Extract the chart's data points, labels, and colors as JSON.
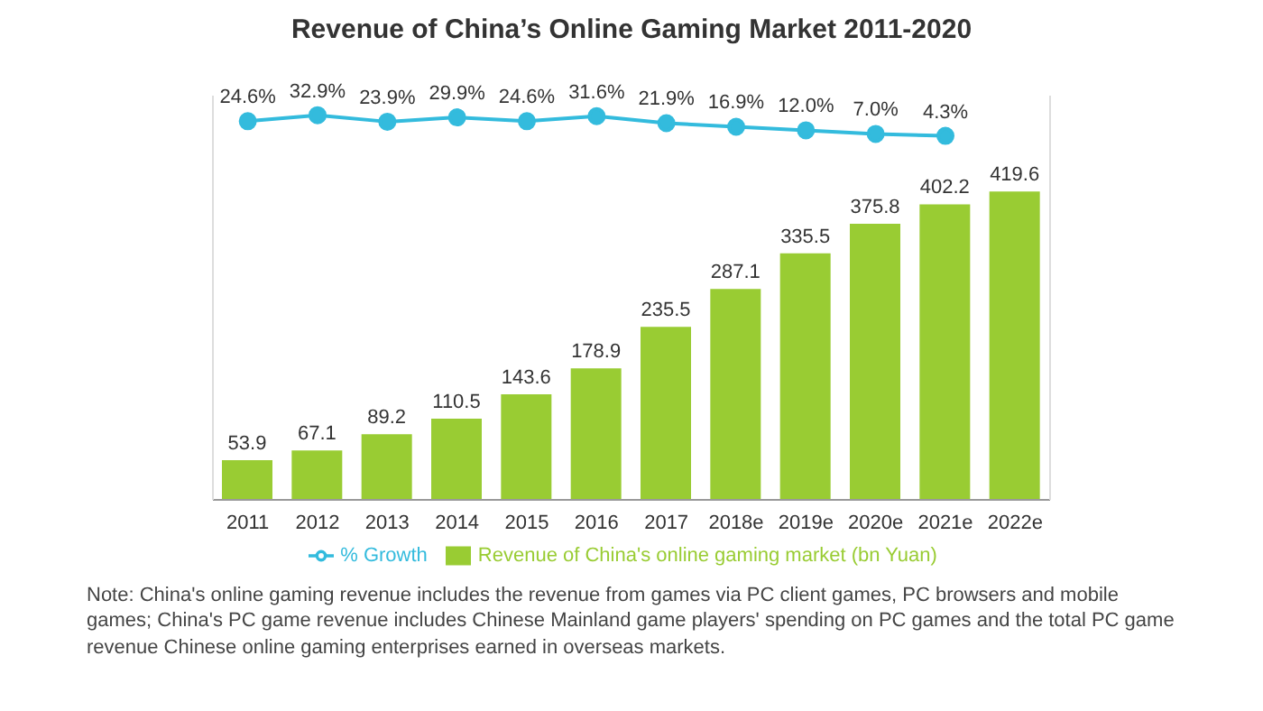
{
  "chart_data": {
    "type": "bar",
    "title": "Revenue of China’s Online Gaming Market 2011-2020",
    "categories": [
      "2011",
      "2012",
      "2013",
      "2014",
      "2015",
      "2016",
      "2017",
      "2018e",
      "2019e",
      "2020e",
      "2021e",
      "2022e"
    ],
    "series": [
      {
        "name": "Revenue of China's online gaming market (bn Yuan)",
        "color": "#99cc33",
        "values": [
          53.9,
          67.1,
          89.2,
          110.5,
          143.6,
          178.9,
          235.5,
          287.1,
          335.5,
          375.8,
          402.2,
          419.6
        ],
        "value_labels": [
          "53.9",
          "67.1",
          "89.2",
          "110.5",
          "143.6",
          "178.9",
          "235.5",
          "287.1",
          "335.5",
          "375.8",
          "402.2",
          "419.6"
        ]
      },
      {
        "name": "% Growth",
        "type": "line",
        "axis": "y2",
        "color": "#33bbdd",
        "values": [
          24.6,
          32.9,
          23.9,
          29.9,
          24.6,
          31.6,
          21.9,
          16.9,
          12.0,
          7.0,
          4.3,
          null
        ],
        "value_labels": [
          "24.6%",
          "32.9%",
          "23.9%",
          "29.9%",
          "24.6%",
          "31.6%",
          "21.9%",
          "16.9%",
          "12.0%",
          "7.0%",
          "4.3%",
          null
        ]
      }
    ],
    "ylim": [
      0,
      550
    ],
    "y2lim": [
      -500,
      60
    ],
    "tick_labels": "x",
    "grid": false,
    "legend": "bottom",
    "marker": "circle",
    "annotations": [
      "Note: China's online gaming revenue includes the revenue from games via PC client games, PC browsers and mobile games;   China's PC game revenue includes Chinese Mainland game players' spending on PC games and the total PC game revenue Chinese online gaming enterprises earned in overseas markets."
    ]
  }
}
